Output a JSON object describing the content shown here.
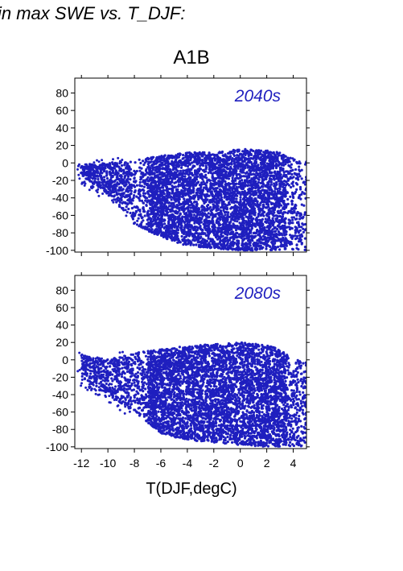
{
  "header": {
    "title": "in max SWE vs. T_DJF:",
    "scenario": "A1B",
    "xlabel": "T(DJF,degC)"
  },
  "colors": {
    "points": "#1f1fbf",
    "panel_label": "#1f1fbf"
  },
  "chart_data": [
    {
      "type": "scatter",
      "panel_label": "2040s",
      "xlim": [
        -12.5,
        5
      ],
      "ylim": [
        -102,
        97
      ],
      "yticks": [
        80,
        60,
        40,
        20,
        0,
        -20,
        -40,
        -60,
        -80,
        -100
      ],
      "xticks": [
        -12,
        -10,
        -8,
        -6,
        -4,
        -2,
        0,
        2,
        4
      ],
      "show_xtick_labels": false,
      "grid": false,
      "density": {
        "x": [
          -12,
          -10,
          -8,
          -6,
          -4,
          -2,
          0,
          2,
          3,
          4,
          5
        ],
        "upper": [
          -2,
          0,
          4,
          8,
          12,
          12,
          16,
          14,
          12,
          5,
          2
        ],
        "lower": [
          -15,
          -35,
          -70,
          -85,
          -95,
          -98,
          -100,
          -100,
          -100,
          -100,
          -100
        ]
      }
    },
    {
      "type": "scatter",
      "panel_label": "2080s",
      "xlim": [
        -12.5,
        5
      ],
      "ylim": [
        -102,
        97
      ],
      "yticks": [
        80,
        60,
        40,
        20,
        0,
        -20,
        -40,
        -60,
        -80,
        -100
      ],
      "xticks": [
        -12,
        -10,
        -8,
        -6,
        -4,
        -2,
        0,
        2,
        4
      ],
      "xtick_labels": [
        "-12",
        "-10",
        "-8",
        "-6",
        "-4",
        "-2",
        "0",
        "2",
        "4"
      ],
      "show_xtick_labels": true,
      "grid": false,
      "density": {
        "x": [
          -12,
          -10,
          -8,
          -6,
          -4,
          -2,
          0,
          2,
          3,
          4,
          5
        ],
        "upper": [
          5,
          2,
          8,
          12,
          16,
          18,
          20,
          17,
          12,
          2,
          -3
        ],
        "lower": [
          -20,
          -40,
          -60,
          -85,
          -92,
          -95,
          -98,
          -100,
          -100,
          -100,
          -100
        ]
      }
    }
  ]
}
